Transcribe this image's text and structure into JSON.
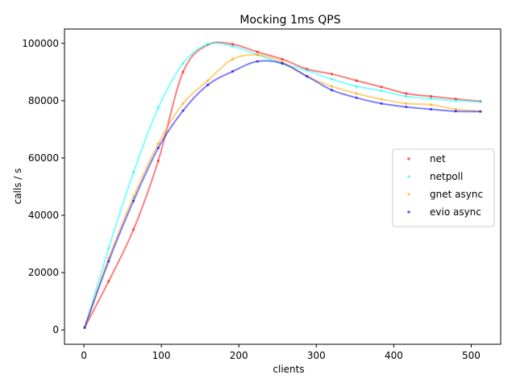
{
  "chart_data": {
    "type": "line",
    "title": "Mocking 1ms QPS",
    "xlabel": "clients",
    "ylabel": "calls / s",
    "xlim": [
      -25,
      538
    ],
    "ylim": [
      -5000,
      105000
    ],
    "xticks": [
      0,
      100,
      200,
      300,
      400,
      500
    ],
    "xtick_labels": [
      "0",
      "100",
      "200",
      "300",
      "400",
      "500"
    ],
    "yticks": [
      0,
      20000,
      40000,
      60000,
      80000,
      100000
    ],
    "ytick_labels": [
      "0",
      "20000",
      "40000",
      "60000",
      "80000",
      "100000"
    ],
    "grid": false,
    "legend_position": "right",
    "x": [
      1,
      32,
      64,
      96,
      128,
      160,
      192,
      224,
      256,
      288,
      320,
      352,
      384,
      416,
      448,
      480,
      512
    ],
    "series": [
      {
        "name": "net",
        "color": "#ff0000",
        "values": [
          800,
          17000,
          35000,
          59000,
          90000,
          99500,
          99700,
          97000,
          94500,
          91000,
          89300,
          87000,
          84800,
          82500,
          81500,
          80600,
          79800
        ]
      },
      {
        "name": "netpoll",
        "color": "#00ffff",
        "values": [
          800,
          28500,
          55000,
          77500,
          93000,
          99700,
          99000,
          96000,
          93000,
          90500,
          87500,
          85000,
          83500,
          81500,
          80700,
          80000,
          79600
        ]
      },
      {
        "name": "gnet async",
        "color": "#ffa500",
        "values": [
          800,
          25000,
          46500,
          65000,
          79000,
          87000,
          94500,
          96000,
          93500,
          88500,
          85000,
          82500,
          80500,
          79000,
          78600,
          77000,
          76300
        ]
      },
      {
        "name": "evio async",
        "color": "#0000ff",
        "values": [
          800,
          24000,
          45000,
          63500,
          76500,
          85500,
          90200,
          93700,
          93000,
          88500,
          83700,
          81000,
          79000,
          77800,
          77000,
          76300,
          76200
        ]
      }
    ]
  }
}
